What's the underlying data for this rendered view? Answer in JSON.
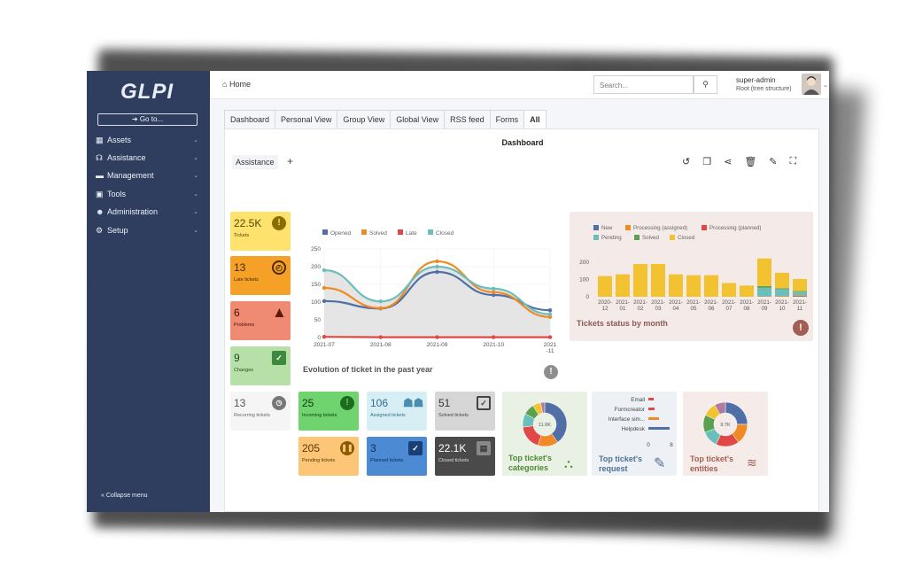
{
  "app": {
    "logo": "GLPI"
  },
  "sidebar": {
    "goto_label": "➜ Go to...",
    "items": [
      {
        "label": "Assets",
        "icon": "assets-icon"
      },
      {
        "label": "Assistance",
        "icon": "headset-icon"
      },
      {
        "label": "Management",
        "icon": "wallet-icon"
      },
      {
        "label": "Tools",
        "icon": "toolbox-icon"
      },
      {
        "label": "Administration",
        "icon": "users-cog-icon"
      },
      {
        "label": "Setup",
        "icon": "cogs-icon"
      }
    ],
    "collapse_label": "Collapse menu"
  },
  "header": {
    "breadcrumb": "Home",
    "search_placeholder": "Search...",
    "user_name": "super-admin",
    "user_entity": "Root (tree structure)"
  },
  "tabs": [
    "Dashboard",
    "Personal View",
    "Group View",
    "Global View",
    "RSS feed",
    "Forms",
    "All"
  ],
  "dashboard": {
    "title": "Dashboard",
    "current": "Assistance",
    "add": "+"
  },
  "cards": {
    "tickets": {
      "value": "22.5K",
      "label": "Tickets",
      "color": "#fde26d"
    },
    "late": {
      "value": "13",
      "label": "Late tickets",
      "color": "#f5a027"
    },
    "problems": {
      "value": "6",
      "label": "Problems",
      "color": "#f08b73"
    },
    "changes": {
      "value": "9",
      "label": "Changes",
      "color": "#b7e0a9"
    },
    "recurring": {
      "value": "13",
      "label": "Recurring tickets",
      "color": "#f5f5f5"
    },
    "incoming": {
      "value": "25",
      "label": "Incoming tickets",
      "color": "#6fd36f"
    },
    "assigned": {
      "value": "106",
      "label": "Assigned tickets",
      "color": "#d7eef5"
    },
    "solved": {
      "value": "51",
      "label": "Solved tickets",
      "color": "#d6d6d6"
    },
    "pending": {
      "value": "205",
      "label": "Pending tickets",
      "color": "#fcc676"
    },
    "planned": {
      "value": "3",
      "label": "Planned tickets",
      "color": "#4c8ad4"
    },
    "closed": {
      "value": "22.1K",
      "label": "Closed tickets",
      "color": "#4a4a4a"
    }
  },
  "evolution": {
    "title": "Evolution of ticket in the past year",
    "legend": [
      "Opened",
      "Solved",
      "Late",
      "Closed"
    ],
    "yticks": [
      "250",
      "200",
      "150",
      "100",
      "50",
      "0"
    ],
    "xticks": [
      "2021-07",
      "2021-08",
      "2021-09",
      "2021-10",
      "2021-11"
    ]
  },
  "status_month": {
    "title": "Tickets status by month",
    "legend": [
      "New",
      "Processing (assigned)",
      "Processing (planned)",
      "Pending",
      "Solved",
      "Closed"
    ],
    "yticks": [
      "200",
      "100",
      "0"
    ],
    "xlabels": [
      "2020-12",
      "2021-01",
      "2021-02",
      "2021-03",
      "2021-04",
      "2021-05",
      "2021-06",
      "2021-07",
      "2021-08",
      "2021-09",
      "2021-10",
      "2021-11"
    ]
  },
  "widgets": {
    "categories_title": "Top ticket's categories",
    "categories_center": "11.6K",
    "request_title": "Top ticket's request",
    "request_labels": [
      "Email",
      "Formcreator",
      "Interface sim...",
      "Helpdesk"
    ],
    "request_ticks": [
      "0",
      "8"
    ],
    "entities_title": "Top ticket's entities",
    "entities_center": "9.7K"
  },
  "chart_data": [
    {
      "type": "line",
      "title": "Evolution of ticket in the past year",
      "x": [
        "2021-07",
        "2021-08",
        "2021-09",
        "2021-10",
        "2021-11"
      ],
      "ylim": [
        0,
        250
      ],
      "series": [
        {
          "name": "Opened",
          "color": "#4f6fa6",
          "values": [
            103,
            82,
            185,
            120,
            77
          ]
        },
        {
          "name": "Solved",
          "color": "#f08a24",
          "values": [
            140,
            83,
            215,
            128,
            58
          ]
        },
        {
          "name": "Late",
          "color": "#e04848",
          "values": [
            2,
            1,
            1,
            1,
            1
          ]
        },
        {
          "name": "Closed",
          "color": "#6bbfba",
          "values": [
            190,
            102,
            200,
            138,
            66
          ]
        }
      ]
    },
    {
      "type": "bar",
      "title": "Tickets status by month",
      "categories": [
        "2020-12",
        "2021-01",
        "2021-02",
        "2021-03",
        "2021-04",
        "2021-05",
        "2021-06",
        "2021-07",
        "2021-08",
        "2021-09",
        "2021-10",
        "2021-11"
      ],
      "ylim": [
        0,
        250
      ],
      "series": [
        {
          "name": "New",
          "color": "#4f6fa6",
          "values": [
            0,
            0,
            0,
            0,
            0,
            0,
            0,
            0,
            0,
            0,
            0,
            3
          ]
        },
        {
          "name": "Processing (assigned)",
          "color": "#f08a24",
          "values": [
            0,
            0,
            0,
            0,
            0,
            0,
            0,
            0,
            0,
            2,
            3,
            5
          ]
        },
        {
          "name": "Processing (planned)",
          "color": "#e04848",
          "values": [
            0,
            0,
            0,
            0,
            0,
            0,
            0,
            0,
            0,
            0,
            1,
            1
          ]
        },
        {
          "name": "Pending",
          "color": "#6bbfba",
          "values": [
            0,
            0,
            0,
            0,
            0,
            0,
            0,
            0,
            0,
            50,
            40,
            20
          ]
        },
        {
          "name": "Solved",
          "color": "#59a14f",
          "values": [
            0,
            0,
            0,
            0,
            0,
            0,
            0,
            0,
            0,
            10,
            5,
            4
          ]
        },
        {
          "name": "Closed",
          "color": "#f2c230",
          "values": [
            120,
            130,
            190,
            190,
            130,
            125,
            125,
            80,
            65,
            160,
            90,
            70
          ]
        }
      ]
    }
  ]
}
